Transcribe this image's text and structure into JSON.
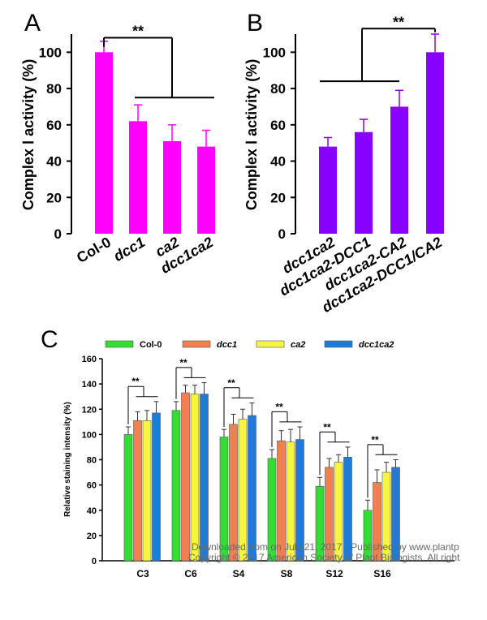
{
  "chart_data": [
    {
      "panel": "A",
      "type": "bar",
      "ylabel": "Complex Ⅰ activity (%)",
      "ylim": [
        0,
        110
      ],
      "yticks": [
        0,
        20,
        40,
        60,
        80,
        100
      ],
      "categories": [
        "Col-0",
        "dcc1",
        "ca2",
        "dcc1ca2"
      ],
      "values": [
        100,
        62,
        51,
        48
      ],
      "errors": [
        6,
        9,
        9,
        9
      ],
      "color": "#ff00ff",
      "significance": "**"
    },
    {
      "panel": "B",
      "type": "bar",
      "ylabel": "Complex Ⅰ activity (%)",
      "ylim": [
        0,
        110
      ],
      "yticks": [
        0,
        20,
        40,
        60,
        80,
        100
      ],
      "categories": [
        "dcc1ca2",
        "dcc1ca2-DCC1",
        "dcc1ca2-CA2",
        "dcc1ca2-DCC1/CA2"
      ],
      "values": [
        48,
        56,
        70,
        100
      ],
      "errors": [
        5,
        7,
        9,
        10
      ],
      "color": "#8800ff",
      "significance": "**"
    },
    {
      "panel": "C",
      "type": "bar",
      "ylabel": "Relative staining intensity (%)",
      "ylim": [
        0,
        160
      ],
      "yticks": [
        0,
        20,
        40,
        60,
        80,
        100,
        120,
        140,
        160
      ],
      "categories": [
        "C3",
        "C6",
        "S4",
        "S8",
        "S12",
        "S16"
      ],
      "series": [
        {
          "name": "Col-0",
          "color": "#33dd33",
          "values": [
            100,
            119,
            98,
            81,
            59,
            40
          ],
          "errors": [
            6,
            7,
            6,
            7,
            7,
            8
          ]
        },
        {
          "name": "dcc1",
          "color": "#f08050",
          "values": [
            111,
            133,
            108,
            95,
            74,
            62
          ],
          "errors": [
            7,
            6,
            8,
            8,
            7,
            10
          ]
        },
        {
          "name": "ca2",
          "color": "#f5f542",
          "values": [
            111,
            132,
            112,
            94,
            78,
            70
          ],
          "errors": [
            8,
            7,
            8,
            10,
            6,
            8
          ]
        },
        {
          "name": "dcc1ca2",
          "color": "#1e7bd8",
          "values": [
            117,
            132,
            115,
            96,
            82,
            74
          ],
          "errors": [
            9,
            9,
            10,
            10,
            8,
            6
          ]
        }
      ],
      "significance": [
        "**",
        "**",
        "**",
        "**",
        "**",
        "**"
      ],
      "legend_position": "top"
    }
  ],
  "panel_labels": {
    "a": "A",
    "b": "B",
    "c": "C"
  },
  "watermark": {
    "line1": "Downloaded from on July 21, 2017 - Published by www.plantp",
    "line2": "Copyright © 2017 American Society of Plant Biologists. All right"
  }
}
